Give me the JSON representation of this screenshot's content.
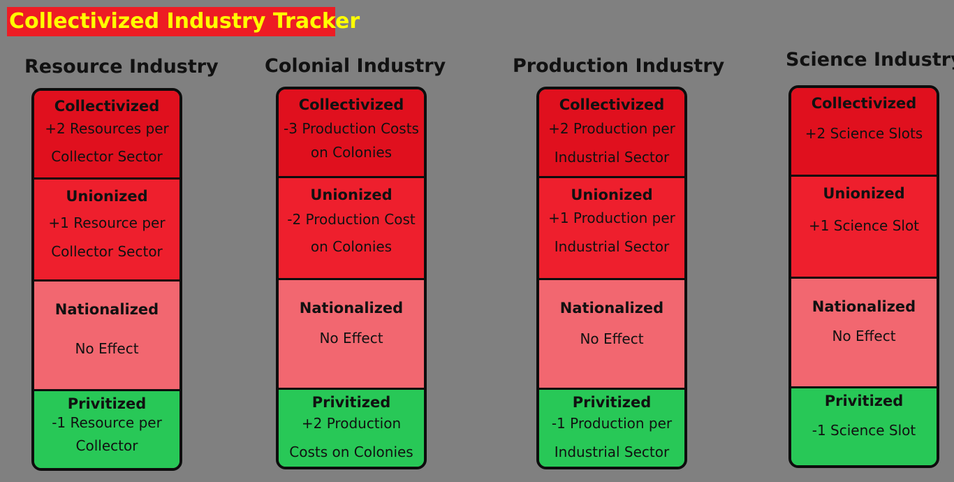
{
  "title": "Collectivized Industry Tracker",
  "industries": [
    {
      "name": "Resource Industry",
      "levels": [
        {
          "title": "Collectivized",
          "lines": [
            "+2 Resources per",
            "Collector Sector"
          ]
        },
        {
          "title": "Unionized",
          "lines": [
            "+1 Resource per",
            "Collector Sector"
          ]
        },
        {
          "title": "Nationalized",
          "lines": [
            "No Effect"
          ]
        },
        {
          "title": "Privitized",
          "lines": [
            "-1 Resource per",
            "Collector"
          ]
        }
      ]
    },
    {
      "name": "Colonial Industry",
      "levels": [
        {
          "title": "Collectivized",
          "lines": [
            "-3 Production Costs",
            "on Colonies"
          ]
        },
        {
          "title": "Unionized",
          "lines": [
            "-2 Production Cost",
            "on Colonies"
          ]
        },
        {
          "title": "Nationalized",
          "lines": [
            "No Effect"
          ]
        },
        {
          "title": "Privitized",
          "lines": [
            "+2 Production",
            "Costs on Colonies"
          ]
        }
      ]
    },
    {
      "name": "Production Industry",
      "levels": [
        {
          "title": "Collectivized",
          "lines": [
            "+2 Production per",
            "Industrial Sector"
          ]
        },
        {
          "title": "Unionized",
          "lines": [
            "+1 Production per",
            "Industrial Sector"
          ]
        },
        {
          "title": "Nationalized",
          "lines": [
            "No Effect"
          ]
        },
        {
          "title": "Privitized",
          "lines": [
            "-1 Production per",
            "Industrial Sector"
          ]
        }
      ]
    },
    {
      "name": "Science Industry",
      "levels": [
        {
          "title": "Collectivized",
          "lines": [
            "+2 Science Slots"
          ]
        },
        {
          "title": "Unionized",
          "lines": [
            "+1 Science Slot"
          ]
        },
        {
          "title": "Nationalized",
          "lines": [
            "No Effect"
          ]
        },
        {
          "title": "Privitized",
          "lines": [
            "-1 Science Slot"
          ]
        }
      ]
    }
  ],
  "colors": {
    "background": "#808080",
    "banner": "#ed1c24",
    "banner_text": "#ffff00",
    "collectivized": "#e0101e",
    "unionized": "#ee1f2d",
    "nationalized": "#f26770",
    "privitized": "#28c857"
  }
}
